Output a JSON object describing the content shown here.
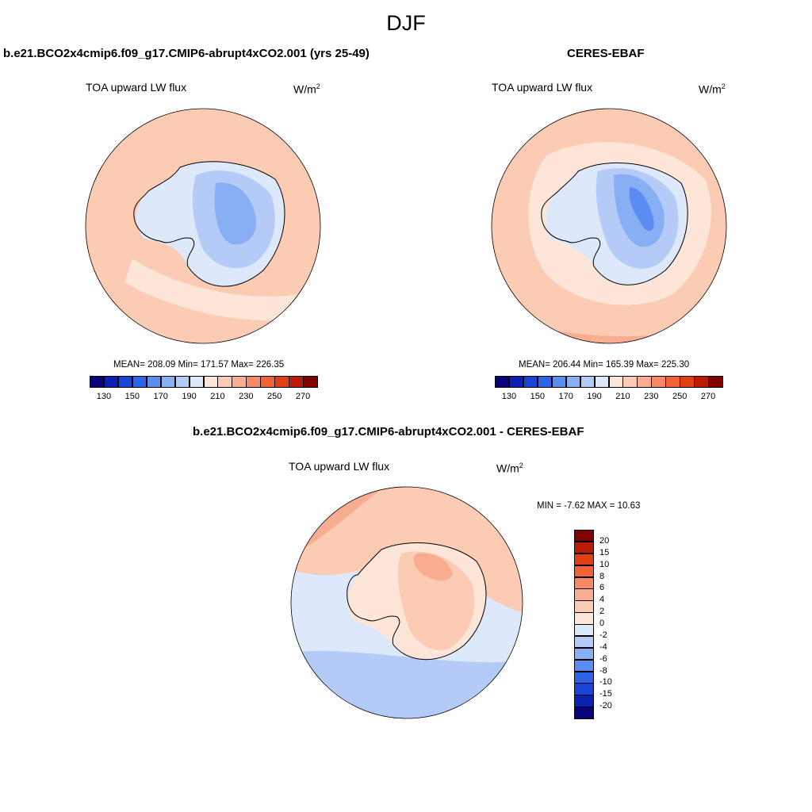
{
  "figure": {
    "title": "DJF"
  },
  "panels": [
    {
      "id": "model",
      "title": "b.e21.BCO2x4cmip6.f09_g17.CMIP6-abrupt4xCO2.001 (yrs 25-49)",
      "variable": "TOA upward LW flux",
      "units_base": "W/m",
      "units_exp": "2",
      "stats": "MEAN= 208.09   Min= 171.57   Max= 226.35",
      "mean": 208.09,
      "min": 171.57,
      "max": 226.35
    },
    {
      "id": "obs",
      "title": "CERES-EBAF",
      "variable": "TOA upward LW flux",
      "units_base": "W/m",
      "units_exp": "2",
      "stats": "MEAN= 206.44   Min= 165.39   Max= 225.30",
      "mean": 206.44,
      "min": 165.39,
      "max": 225.3
    },
    {
      "id": "diff",
      "title": "b.e21.BCO2x4cmip6.f09_g17.CMIP6-abrupt4xCO2.001 - CERES-EBAF",
      "variable": "TOA upward LW flux",
      "units_base": "W/m",
      "units_exp": "2",
      "stats": "MIN =  -7.62 MAX =  10.63",
      "min": -7.62,
      "max": 10.63
    }
  ],
  "colorbar_abs": {
    "levels": [
      "130",
      "150",
      "170",
      "190",
      "210",
      "230",
      "250",
      "270"
    ],
    "colors": [
      "#08037a",
      "#0b21b4",
      "#1b43d4",
      "#2f63ea",
      "#5a8cf2",
      "#88aef4",
      "#b4cbf7",
      "#dde9fb",
      "#fde6d8",
      "#fbcbb3",
      "#f9ad90",
      "#f68a67",
      "#f26237",
      "#e13f12",
      "#b91b05",
      "#800202"
    ]
  },
  "colorbar_diff": {
    "levels": [
      "20",
      "15",
      "10",
      "8",
      "6",
      "4",
      "2",
      "0",
      "-2",
      "-4",
      "-6",
      "-8",
      "-10",
      "-15",
      "-20"
    ],
    "colors_top_to_bottom": [
      "#800202",
      "#b91b05",
      "#e13f12",
      "#f26237",
      "#f68a67",
      "#f9ad90",
      "#fbcbb3",
      "#fde6d8",
      "#dde9fb",
      "#b4cbf7",
      "#88aef4",
      "#5a8cf2",
      "#2f63ea",
      "#1b43d4",
      "#0b21b4",
      "#08037a"
    ]
  },
  "colors": {
    "ocean_warm": "#fbcbb3",
    "land_cold": "#b4cbf7",
    "land_colder": "#88aef4",
    "light_pink": "#fde6d8",
    "light_blue": "#dde9fb",
    "orange": "#f9ad90",
    "deep_blue": "#5a8cf2"
  }
}
